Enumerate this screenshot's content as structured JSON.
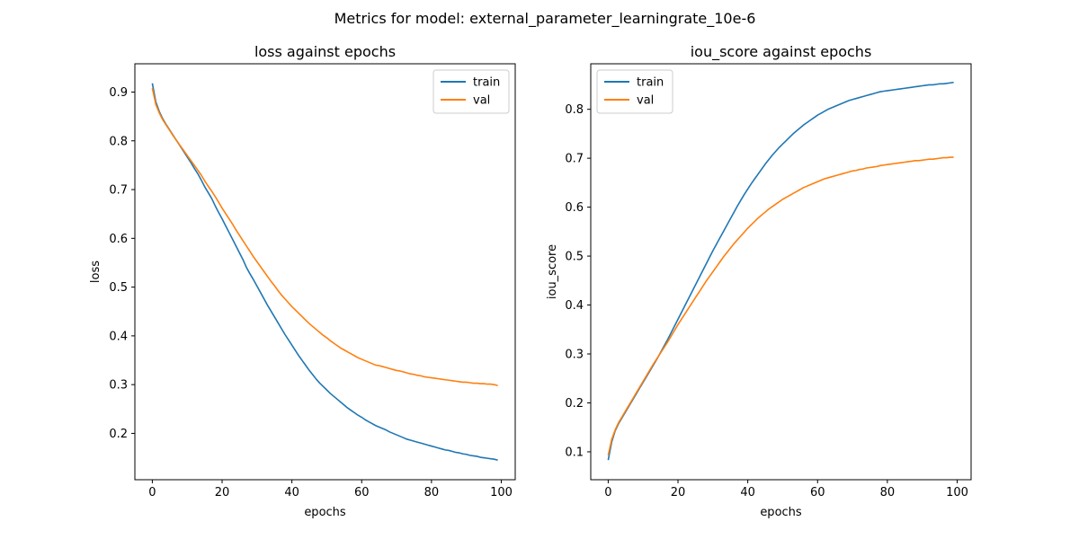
{
  "figure": {
    "suptitle": "Metrics for model: external_parameter_learningrate_10e-6"
  },
  "chart_data": [
    {
      "type": "line",
      "title": "loss against epochs",
      "xlabel": "epochs",
      "ylabel": "loss",
      "xlim": [
        -5,
        104
      ],
      "ylim": [
        0.105,
        0.958
      ],
      "xticks": [
        0,
        20,
        40,
        60,
        80,
        100
      ],
      "yticks": [
        0.2,
        0.3,
        0.4,
        0.5,
        0.6,
        0.7,
        0.8,
        0.9
      ],
      "grid": false,
      "legend_loc": "upper right",
      "x": [
        0,
        1,
        2,
        3,
        4,
        5,
        6,
        7,
        8,
        9,
        10,
        11,
        12,
        13,
        14,
        15,
        16,
        17,
        18,
        19,
        20,
        21,
        22,
        23,
        24,
        25,
        26,
        27,
        28,
        29,
        30,
        31,
        32,
        33,
        34,
        35,
        36,
        37,
        38,
        39,
        40,
        41,
        42,
        43,
        44,
        45,
        46,
        47,
        48,
        49,
        50,
        51,
        52,
        53,
        54,
        55,
        56,
        57,
        58,
        59,
        60,
        61,
        62,
        63,
        64,
        65,
        66,
        67,
        68,
        69,
        70,
        71,
        72,
        73,
        74,
        75,
        76,
        77,
        78,
        79,
        80,
        81,
        82,
        83,
        84,
        85,
        86,
        87,
        88,
        89,
        90,
        91,
        92,
        93,
        94,
        95,
        96,
        97,
        98,
        99
      ],
      "series": [
        {
          "name": "train",
          "color": "#1f77b4",
          "values": [
            0.918,
            0.88,
            0.86,
            0.845,
            0.833,
            0.822,
            0.811,
            0.8,
            0.789,
            0.778,
            0.767,
            0.756,
            0.744,
            0.733,
            0.72,
            0.706,
            0.694,
            0.682,
            0.667,
            0.653,
            0.64,
            0.626,
            0.612,
            0.598,
            0.584,
            0.57,
            0.556,
            0.54,
            0.527,
            0.515,
            0.502,
            0.489,
            0.476,
            0.463,
            0.451,
            0.439,
            0.427,
            0.415,
            0.403,
            0.392,
            0.381,
            0.37,
            0.359,
            0.349,
            0.339,
            0.329,
            0.32,
            0.311,
            0.303,
            0.296,
            0.289,
            0.282,
            0.276,
            0.27,
            0.264,
            0.258,
            0.252,
            0.247,
            0.242,
            0.237,
            0.233,
            0.228,
            0.224,
            0.22,
            0.216,
            0.213,
            0.21,
            0.207,
            0.203,
            0.2,
            0.197,
            0.194,
            0.191,
            0.188,
            0.186,
            0.184,
            0.182,
            0.18,
            0.178,
            0.176,
            0.174,
            0.172,
            0.17,
            0.168,
            0.166,
            0.165,
            0.163,
            0.161,
            0.16,
            0.158,
            0.157,
            0.155,
            0.154,
            0.153,
            0.151,
            0.15,
            0.149,
            0.148,
            0.147,
            0.145
          ]
        },
        {
          "name": "val",
          "color": "#ff7f0e",
          "values": [
            0.908,
            0.875,
            0.857,
            0.843,
            0.832,
            0.821,
            0.81,
            0.8,
            0.79,
            0.78,
            0.77,
            0.76,
            0.75,
            0.74,
            0.73,
            0.718,
            0.707,
            0.697,
            0.686,
            0.674,
            0.662,
            0.651,
            0.64,
            0.629,
            0.617,
            0.606,
            0.595,
            0.584,
            0.573,
            0.562,
            0.552,
            0.542,
            0.532,
            0.522,
            0.512,
            0.503,
            0.493,
            0.484,
            0.476,
            0.468,
            0.46,
            0.453,
            0.446,
            0.439,
            0.432,
            0.425,
            0.419,
            0.413,
            0.407,
            0.401,
            0.396,
            0.39,
            0.385,
            0.38,
            0.375,
            0.371,
            0.367,
            0.363,
            0.359,
            0.355,
            0.352,
            0.349,
            0.346,
            0.343,
            0.34,
            0.339,
            0.337,
            0.335,
            0.333,
            0.331,
            0.329,
            0.328,
            0.326,
            0.324,
            0.322,
            0.321,
            0.319,
            0.318,
            0.316,
            0.315,
            0.314,
            0.313,
            0.312,
            0.311,
            0.31,
            0.309,
            0.308,
            0.307,
            0.306,
            0.305,
            0.305,
            0.304,
            0.303,
            0.303,
            0.302,
            0.302,
            0.301,
            0.301,
            0.3,
            0.298
          ]
        }
      ]
    },
    {
      "type": "line",
      "title": "iou_score against epochs",
      "xlabel": "epochs",
      "ylabel": "iou_score",
      "xlim": [
        -5,
        104
      ],
      "ylim": [
        0.043,
        0.893
      ],
      "xticks": [
        0,
        20,
        40,
        60,
        80,
        100
      ],
      "yticks": [
        0.1,
        0.2,
        0.3,
        0.4,
        0.5,
        0.6,
        0.7,
        0.8
      ],
      "grid": false,
      "legend_loc": "upper left",
      "x": [
        0,
        1,
        2,
        3,
        4,
        5,
        6,
        7,
        8,
        9,
        10,
        11,
        12,
        13,
        14,
        15,
        16,
        17,
        18,
        19,
        20,
        21,
        22,
        23,
        24,
        25,
        26,
        27,
        28,
        29,
        30,
        31,
        32,
        33,
        34,
        35,
        36,
        37,
        38,
        39,
        40,
        41,
        42,
        43,
        44,
        45,
        46,
        47,
        48,
        49,
        50,
        51,
        52,
        53,
        54,
        55,
        56,
        57,
        58,
        59,
        60,
        61,
        62,
        63,
        64,
        65,
        66,
        67,
        68,
        69,
        70,
        71,
        72,
        73,
        74,
        75,
        76,
        77,
        78,
        79,
        80,
        81,
        82,
        83,
        84,
        85,
        86,
        87,
        88,
        89,
        90,
        91,
        92,
        93,
        94,
        95,
        96,
        97,
        98,
        99
      ],
      "series": [
        {
          "name": "train",
          "color": "#1f77b4",
          "values": [
            0.083,
            0.12,
            0.143,
            0.158,
            0.17,
            0.182,
            0.194,
            0.206,
            0.218,
            0.23,
            0.242,
            0.254,
            0.266,
            0.278,
            0.29,
            0.303,
            0.316,
            0.329,
            0.343,
            0.357,
            0.371,
            0.385,
            0.399,
            0.413,
            0.427,
            0.441,
            0.455,
            0.469,
            0.483,
            0.497,
            0.511,
            0.524,
            0.537,
            0.55,
            0.563,
            0.576,
            0.589,
            0.602,
            0.614,
            0.626,
            0.637,
            0.648,
            0.658,
            0.668,
            0.678,
            0.688,
            0.697,
            0.706,
            0.714,
            0.722,
            0.729,
            0.736,
            0.743,
            0.75,
            0.756,
            0.762,
            0.768,
            0.773,
            0.778,
            0.783,
            0.788,
            0.792,
            0.796,
            0.8,
            0.803,
            0.806,
            0.809,
            0.812,
            0.815,
            0.818,
            0.82,
            0.822,
            0.824,
            0.826,
            0.828,
            0.83,
            0.832,
            0.834,
            0.836,
            0.837,
            0.838,
            0.839,
            0.84,
            0.841,
            0.842,
            0.843,
            0.844,
            0.845,
            0.846,
            0.847,
            0.848,
            0.849,
            0.85,
            0.85,
            0.851,
            0.852,
            0.852,
            0.853,
            0.854,
            0.855
          ]
        },
        {
          "name": "val",
          "color": "#ff7f0e",
          "values": [
            0.093,
            0.125,
            0.145,
            0.16,
            0.172,
            0.184,
            0.196,
            0.208,
            0.22,
            0.232,
            0.244,
            0.256,
            0.268,
            0.28,
            0.291,
            0.302,
            0.313,
            0.324,
            0.336,
            0.348,
            0.36,
            0.371,
            0.382,
            0.393,
            0.404,
            0.415,
            0.426,
            0.437,
            0.448,
            0.458,
            0.468,
            0.478,
            0.488,
            0.498,
            0.507,
            0.516,
            0.525,
            0.533,
            0.541,
            0.549,
            0.557,
            0.564,
            0.571,
            0.578,
            0.584,
            0.59,
            0.596,
            0.601,
            0.606,
            0.611,
            0.616,
            0.62,
            0.624,
            0.628,
            0.632,
            0.636,
            0.64,
            0.643,
            0.646,
            0.649,
            0.652,
            0.655,
            0.658,
            0.66,
            0.662,
            0.664,
            0.666,
            0.668,
            0.67,
            0.672,
            0.674,
            0.675,
            0.677,
            0.678,
            0.68,
            0.681,
            0.682,
            0.683,
            0.685,
            0.686,
            0.687,
            0.688,
            0.689,
            0.69,
            0.691,
            0.692,
            0.693,
            0.694,
            0.695,
            0.695,
            0.696,
            0.697,
            0.698,
            0.698,
            0.699,
            0.7,
            0.701,
            0.701,
            0.702,
            0.702
          ]
        }
      ]
    }
  ]
}
